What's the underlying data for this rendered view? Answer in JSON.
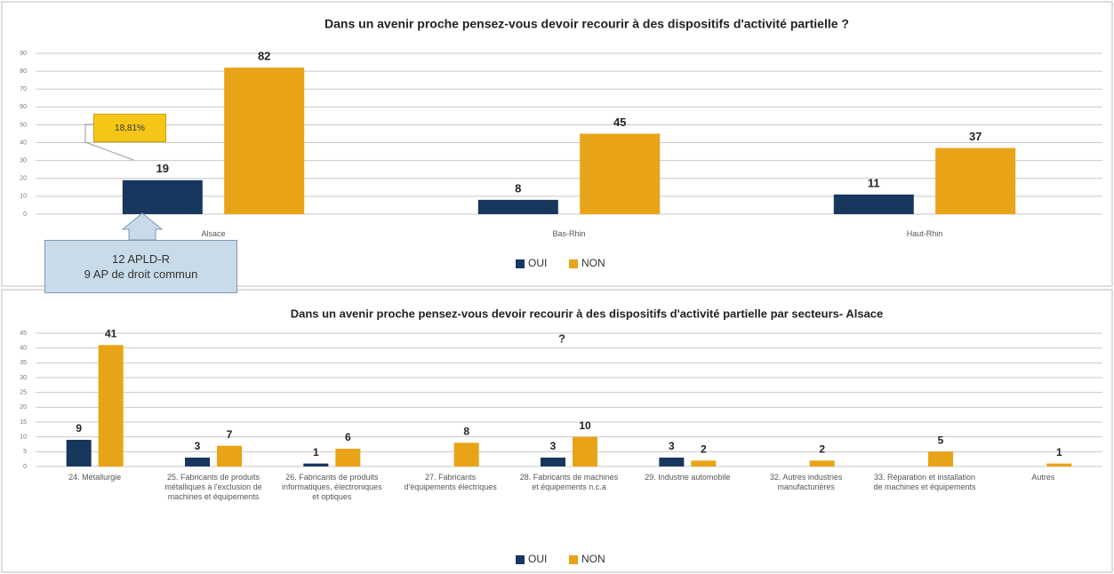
{
  "chart_data": [
    {
      "type": "bar",
      "title": "Dans un avenir proche pensez-vous devoir recourir à des dispositifs d'activité partielle ?",
      "categories": [
        "Alsace",
        "Bas-Rhin",
        "Haut-Rhin"
      ],
      "series": [
        {
          "name": "OUI",
          "color": "#17375e",
          "values": [
            19,
            8,
            11
          ]
        },
        {
          "name": "NON",
          "color": "#e8a317",
          "values": [
            82,
            45,
            37
          ]
        }
      ],
      "ylim": [
        0,
        90
      ],
      "yticks": [
        0,
        10,
        20,
        30,
        40,
        50,
        60,
        70,
        80,
        90
      ],
      "grid": true,
      "legend": "bottom",
      "annotations": [
        "18,81%",
        "12 APLD-R",
        "9 AP de droit commun"
      ]
    },
    {
      "type": "bar",
      "title": "Dans un avenir proche pensez-vous devoir recourir à des dispositifs d'activité partielle par secteurs- Alsace",
      "categories": [
        "24. Métallurgie",
        "25. Fabricants de produits métalliques à l'exclusion de machines et équipements",
        "26. Fabricants de produits informatiques, électroniques et optiques",
        "27. Fabricants d'équipements électriques",
        "28. Fabricants de machines et équipements n.c.a",
        "29. Industrie automobile",
        "32. Autres industries manufacturières",
        "33. Réparation et installation de machines et équipements",
        "Autres"
      ],
      "series": [
        {
          "name": "OUI",
          "color": "#17375e",
          "values": [
            9,
            3,
            1,
            null,
            3,
            3,
            null,
            null,
            null
          ]
        },
        {
          "name": "NON",
          "color": "#e8a317",
          "values": [
            41,
            7,
            6,
            8,
            10,
            2,
            2,
            5,
            1
          ]
        }
      ],
      "ylim": [
        0,
        45
      ],
      "yticks": [
        0,
        5,
        10,
        15,
        20,
        25,
        30,
        35,
        40,
        45
      ],
      "grid": true,
      "legend": "bottom",
      "annotations": [
        "?"
      ]
    }
  ]
}
